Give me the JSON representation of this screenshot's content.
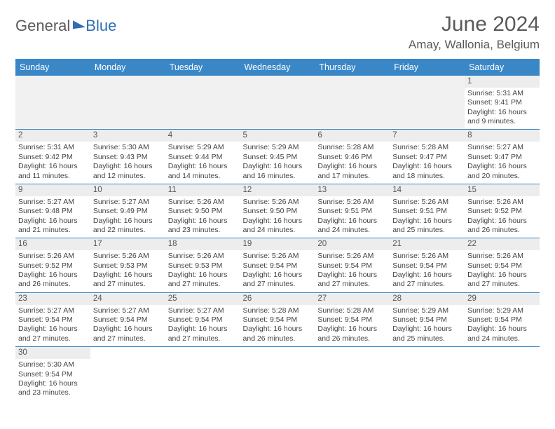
{
  "logo": {
    "part1": "General",
    "part2": "Blue"
  },
  "title": "June 2024",
  "location": "Amay, Wallonia, Belgium",
  "colors": {
    "header_bg": "#3a87c8",
    "header_text": "#ffffff",
    "daynum_bg": "#ededed",
    "cell_border": "#3a87c8",
    "title_color": "#5a5a5a",
    "logo_accent": "#2e6fb4"
  },
  "daynames": [
    "Sunday",
    "Monday",
    "Tuesday",
    "Wednesday",
    "Thursday",
    "Friday",
    "Saturday"
  ],
  "weeks": [
    [
      null,
      null,
      null,
      null,
      null,
      null,
      {
        "n": "1",
        "sr": "Sunrise: 5:31 AM",
        "ss": "Sunset: 9:41 PM",
        "d1": "Daylight: 16 hours",
        "d2": "and 9 minutes."
      }
    ],
    [
      {
        "n": "2",
        "sr": "Sunrise: 5:31 AM",
        "ss": "Sunset: 9:42 PM",
        "d1": "Daylight: 16 hours",
        "d2": "and 11 minutes."
      },
      {
        "n": "3",
        "sr": "Sunrise: 5:30 AM",
        "ss": "Sunset: 9:43 PM",
        "d1": "Daylight: 16 hours",
        "d2": "and 12 minutes."
      },
      {
        "n": "4",
        "sr": "Sunrise: 5:29 AM",
        "ss": "Sunset: 9:44 PM",
        "d1": "Daylight: 16 hours",
        "d2": "and 14 minutes."
      },
      {
        "n": "5",
        "sr": "Sunrise: 5:29 AM",
        "ss": "Sunset: 9:45 PM",
        "d1": "Daylight: 16 hours",
        "d2": "and 16 minutes."
      },
      {
        "n": "6",
        "sr": "Sunrise: 5:28 AM",
        "ss": "Sunset: 9:46 PM",
        "d1": "Daylight: 16 hours",
        "d2": "and 17 minutes."
      },
      {
        "n": "7",
        "sr": "Sunrise: 5:28 AM",
        "ss": "Sunset: 9:47 PM",
        "d1": "Daylight: 16 hours",
        "d2": "and 18 minutes."
      },
      {
        "n": "8",
        "sr": "Sunrise: 5:27 AM",
        "ss": "Sunset: 9:47 PM",
        "d1": "Daylight: 16 hours",
        "d2": "and 20 minutes."
      }
    ],
    [
      {
        "n": "9",
        "sr": "Sunrise: 5:27 AM",
        "ss": "Sunset: 9:48 PM",
        "d1": "Daylight: 16 hours",
        "d2": "and 21 minutes."
      },
      {
        "n": "10",
        "sr": "Sunrise: 5:27 AM",
        "ss": "Sunset: 9:49 PM",
        "d1": "Daylight: 16 hours",
        "d2": "and 22 minutes."
      },
      {
        "n": "11",
        "sr": "Sunrise: 5:26 AM",
        "ss": "Sunset: 9:50 PM",
        "d1": "Daylight: 16 hours",
        "d2": "and 23 minutes."
      },
      {
        "n": "12",
        "sr": "Sunrise: 5:26 AM",
        "ss": "Sunset: 9:50 PM",
        "d1": "Daylight: 16 hours",
        "d2": "and 24 minutes."
      },
      {
        "n": "13",
        "sr": "Sunrise: 5:26 AM",
        "ss": "Sunset: 9:51 PM",
        "d1": "Daylight: 16 hours",
        "d2": "and 24 minutes."
      },
      {
        "n": "14",
        "sr": "Sunrise: 5:26 AM",
        "ss": "Sunset: 9:51 PM",
        "d1": "Daylight: 16 hours",
        "d2": "and 25 minutes."
      },
      {
        "n": "15",
        "sr": "Sunrise: 5:26 AM",
        "ss": "Sunset: 9:52 PM",
        "d1": "Daylight: 16 hours",
        "d2": "and 26 minutes."
      }
    ],
    [
      {
        "n": "16",
        "sr": "Sunrise: 5:26 AM",
        "ss": "Sunset: 9:52 PM",
        "d1": "Daylight: 16 hours",
        "d2": "and 26 minutes."
      },
      {
        "n": "17",
        "sr": "Sunrise: 5:26 AM",
        "ss": "Sunset: 9:53 PM",
        "d1": "Daylight: 16 hours",
        "d2": "and 27 minutes."
      },
      {
        "n": "18",
        "sr": "Sunrise: 5:26 AM",
        "ss": "Sunset: 9:53 PM",
        "d1": "Daylight: 16 hours",
        "d2": "and 27 minutes."
      },
      {
        "n": "19",
        "sr": "Sunrise: 5:26 AM",
        "ss": "Sunset: 9:54 PM",
        "d1": "Daylight: 16 hours",
        "d2": "and 27 minutes."
      },
      {
        "n": "20",
        "sr": "Sunrise: 5:26 AM",
        "ss": "Sunset: 9:54 PM",
        "d1": "Daylight: 16 hours",
        "d2": "and 27 minutes."
      },
      {
        "n": "21",
        "sr": "Sunrise: 5:26 AM",
        "ss": "Sunset: 9:54 PM",
        "d1": "Daylight: 16 hours",
        "d2": "and 27 minutes."
      },
      {
        "n": "22",
        "sr": "Sunrise: 5:26 AM",
        "ss": "Sunset: 9:54 PM",
        "d1": "Daylight: 16 hours",
        "d2": "and 27 minutes."
      }
    ],
    [
      {
        "n": "23",
        "sr": "Sunrise: 5:27 AM",
        "ss": "Sunset: 9:54 PM",
        "d1": "Daylight: 16 hours",
        "d2": "and 27 minutes."
      },
      {
        "n": "24",
        "sr": "Sunrise: 5:27 AM",
        "ss": "Sunset: 9:54 PM",
        "d1": "Daylight: 16 hours",
        "d2": "and 27 minutes."
      },
      {
        "n": "25",
        "sr": "Sunrise: 5:27 AM",
        "ss": "Sunset: 9:54 PM",
        "d1": "Daylight: 16 hours",
        "d2": "and 27 minutes."
      },
      {
        "n": "26",
        "sr": "Sunrise: 5:28 AM",
        "ss": "Sunset: 9:54 PM",
        "d1": "Daylight: 16 hours",
        "d2": "and 26 minutes."
      },
      {
        "n": "27",
        "sr": "Sunrise: 5:28 AM",
        "ss": "Sunset: 9:54 PM",
        "d1": "Daylight: 16 hours",
        "d2": "and 26 minutes."
      },
      {
        "n": "28",
        "sr": "Sunrise: 5:29 AM",
        "ss": "Sunset: 9:54 PM",
        "d1": "Daylight: 16 hours",
        "d2": "and 25 minutes."
      },
      {
        "n": "29",
        "sr": "Sunrise: 5:29 AM",
        "ss": "Sunset: 9:54 PM",
        "d1": "Daylight: 16 hours",
        "d2": "and 24 minutes."
      }
    ],
    [
      {
        "n": "30",
        "sr": "Sunrise: 5:30 AM",
        "ss": "Sunset: 9:54 PM",
        "d1": "Daylight: 16 hours",
        "d2": "and 23 minutes."
      },
      null,
      null,
      null,
      null,
      null,
      null
    ]
  ]
}
